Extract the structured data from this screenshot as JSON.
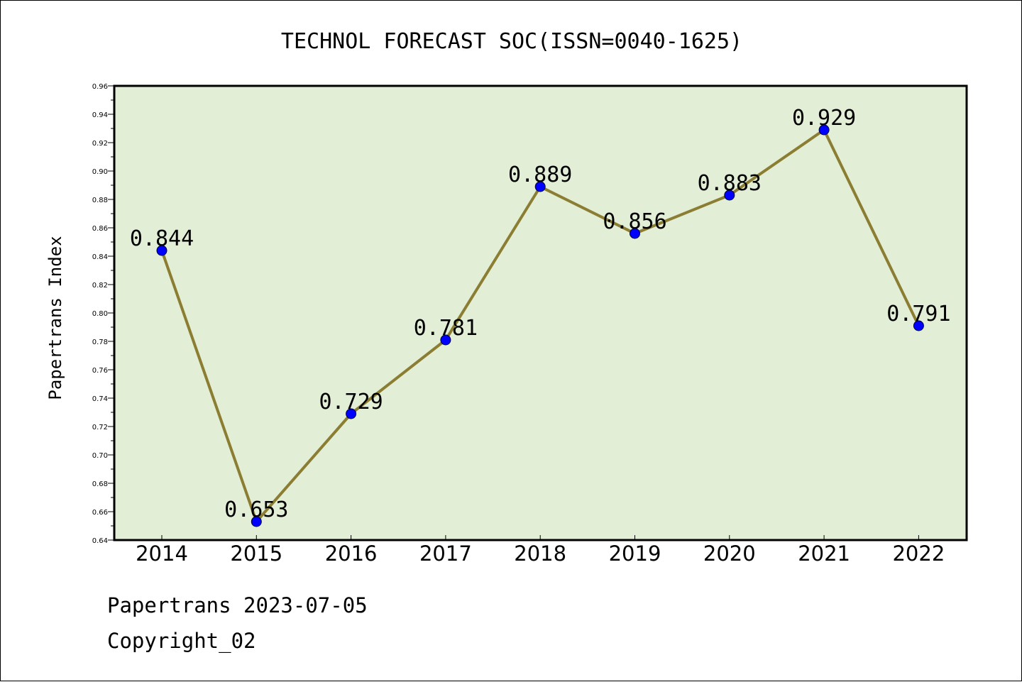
{
  "chart_data": {
    "type": "line",
    "title": "TECHNOL FORECAST SOC(ISSN=0040-1625)",
    "xlabel": "",
    "ylabel": "Papertrans Index",
    "categories": [
      "2014",
      "2015",
      "2016",
      "2017",
      "2018",
      "2019",
      "2020",
      "2021",
      "2022"
    ],
    "series": [
      {
        "values": [
          0.844,
          0.653,
          0.729,
          0.781,
          0.889,
          0.856,
          0.883,
          0.929,
          0.791
        ]
      }
    ],
    "data_labels": [
      "0.844",
      "0.653",
      "0.729",
      "0.781",
      "0.889",
      "0.856",
      "0.883",
      "0.929",
      "0.791"
    ],
    "ylim": [
      0.64,
      0.96
    ],
    "yticks": [
      "0.64",
      "0.66",
      "0.68",
      "0.70",
      "0.72",
      "0.74",
      "0.76",
      "0.78",
      "0.80",
      "0.82",
      "0.84",
      "0.86",
      "0.88",
      "0.90",
      "0.92",
      "0.94",
      "0.96"
    ],
    "grid": false,
    "colors": {
      "plot_background": "#e2efd6",
      "line": "#8b7d32",
      "marker": "#0000ff"
    }
  },
  "footer": {
    "source": "Papertrans 2023-07-05",
    "copyright": "Copyright_02"
  }
}
